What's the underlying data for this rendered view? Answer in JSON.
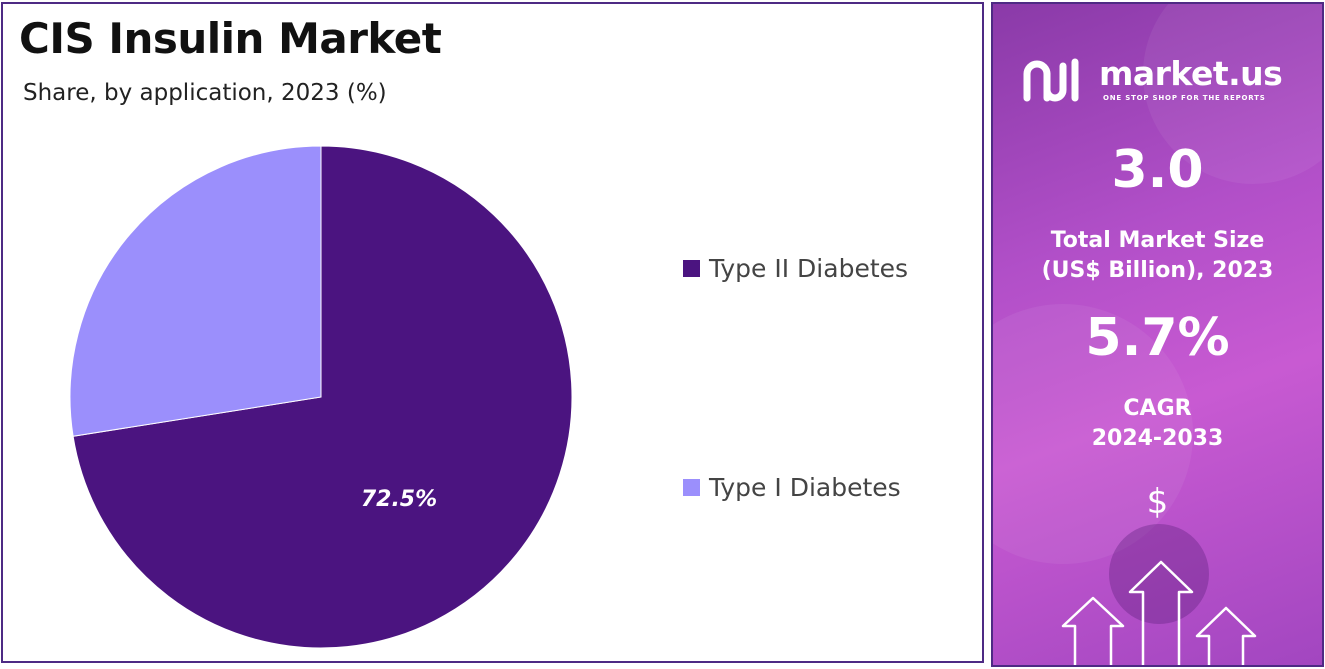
{
  "chart_data": {
    "type": "pie",
    "title": "CIS Insulin Market",
    "subtitle": "Share, by application, 2023 (%)",
    "series": [
      {
        "name": "Type II Diabetes",
        "value": 72.5,
        "color": "#4b1480",
        "label": "72.5%"
      },
      {
        "name": "Type I Diabetes",
        "value": 27.5,
        "color": "#9b8ffc"
      }
    ],
    "legend_position": "right"
  },
  "side_panel": {
    "brand_name": "market.us",
    "brand_tagline": "ONE STOP SHOP FOR THE REPORTS",
    "market_size_value": "3.0",
    "market_size_label_line1": "Total Market Size",
    "market_size_label_line2": "(US$ Billion), 2023",
    "cagr_value": "5.7%",
    "cagr_label_line1": "CAGR",
    "cagr_label_line2": "2024-2033",
    "currency_symbol": "$",
    "icons": [
      "market-us-logo-icon",
      "dollar-icon",
      "up-arrow-icon"
    ]
  }
}
